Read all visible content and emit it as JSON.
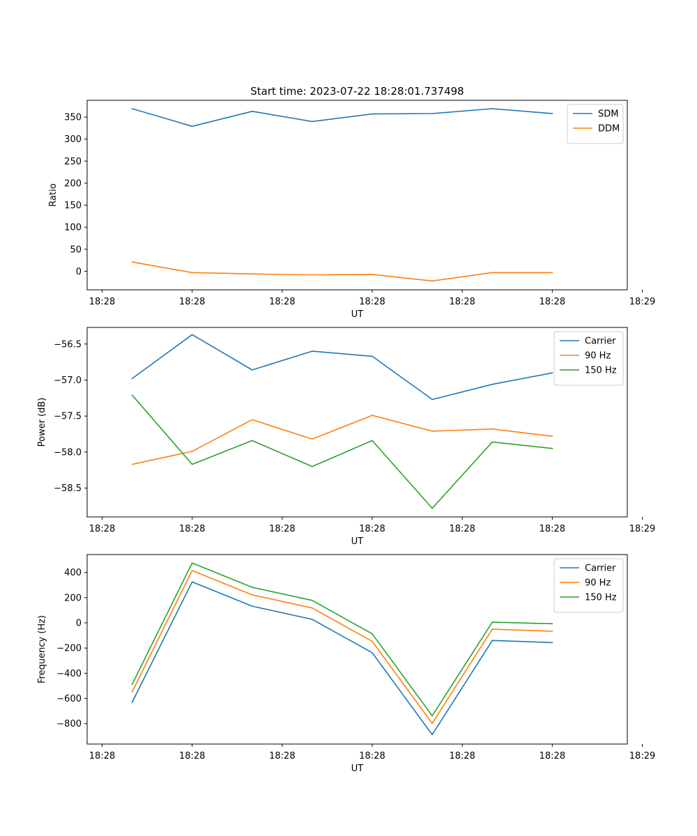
{
  "figure": {
    "title": "Start time: 2023-07-22 18:28:01.737498"
  },
  "colors": {
    "series1": "#1f77b4",
    "series2": "#ff7f0e",
    "series3": "#2ca02c",
    "axis": "#000000",
    "legend_border": "#cccccc"
  },
  "chart_data": [
    {
      "type": "line",
      "title": "Start time: 2023-07-22 18:28:01.737498",
      "xlabel": "UT",
      "ylabel": "Ratio",
      "x": [
        1,
        2,
        3,
        4,
        5,
        6,
        7,
        8
      ],
      "xlim": [
        0.25,
        9.25
      ],
      "xticks": [
        0.5,
        2,
        3.5,
        5,
        6.5,
        8,
        9.5
      ],
      "xtick_labels": [
        "18:28",
        "18:28",
        "18:28",
        "18:28",
        "18:28",
        "18:28",
        "18:29"
      ],
      "ylim": [
        -42,
        388
      ],
      "yticks": [
        0,
        50,
        100,
        150,
        200,
        250,
        300,
        350
      ],
      "ytick_labels": [
        "0",
        "50",
        "100",
        "150",
        "200",
        "250",
        "300",
        "350"
      ],
      "legend_position": "upper right",
      "series": [
        {
          "name": "SDM",
          "color_key": "series1",
          "values": [
            369,
            329,
            363,
            340,
            357,
            358,
            369,
            358
          ]
        },
        {
          "name": "DDM",
          "color_key": "series2",
          "values": [
            21,
            -3,
            -6,
            -8,
            -7,
            -22,
            -3,
            -3
          ]
        }
      ]
    },
    {
      "type": "line",
      "title": "",
      "xlabel": "UT",
      "ylabel": "Power (dB)",
      "x": [
        1,
        2,
        3,
        4,
        5,
        6,
        7,
        8
      ],
      "xlim": [
        0.25,
        9.25
      ],
      "xticks": [
        0.5,
        2,
        3.5,
        5,
        6.5,
        8,
        9.5
      ],
      "xtick_labels": [
        "18:28",
        "18:28",
        "18:28",
        "18:28",
        "18:28",
        "18:28",
        "18:29"
      ],
      "ylim": [
        -58.9,
        -56.27
      ],
      "yticks": [
        -56.5,
        -57.0,
        -57.5,
        -58.0,
        -58.5
      ],
      "ytick_labels": [
        "−56.5",
        "−57.0",
        "−57.5",
        "−58.0",
        "−58.5"
      ],
      "legend_position": "upper right",
      "series": [
        {
          "name": "Carrier",
          "color_key": "series1",
          "values": [
            -56.98,
            -56.37,
            -56.86,
            -56.6,
            -56.67,
            -57.27,
            -57.06,
            -56.9
          ]
        },
        {
          "name": "90 Hz",
          "color_key": "series2",
          "values": [
            -58.17,
            -57.99,
            -57.55,
            -57.82,
            -57.49,
            -57.71,
            -57.68,
            -57.78
          ]
        },
        {
          "name": "150 Hz",
          "color_key": "series3",
          "values": [
            -57.21,
            -58.17,
            -57.84,
            -58.2,
            -57.84,
            -58.78,
            -57.86,
            -57.95
          ]
        }
      ]
    },
    {
      "type": "line",
      "title": "",
      "xlabel": "UT",
      "ylabel": "Frequency (Hz)",
      "x": [
        1,
        2,
        3,
        4,
        5,
        6,
        7,
        8
      ],
      "xlim": [
        0.25,
        9.25
      ],
      "xticks": [
        0.5,
        2,
        3.5,
        5,
        6.5,
        8,
        9.5
      ],
      "xtick_labels": [
        "18:28",
        "18:28",
        "18:28",
        "18:28",
        "18:28",
        "18:28",
        "18:29"
      ],
      "ylim": [
        -962,
        542
      ],
      "yticks": [
        400,
        200,
        0,
        -200,
        -400,
        -600,
        -800
      ],
      "ytick_labels": [
        "400",
        "200",
        "0",
        "−200",
        "−400",
        "−600",
        "−800"
      ],
      "legend_position": "upper right",
      "series": [
        {
          "name": "Carrier",
          "color_key": "series1",
          "values": [
            -630,
            325,
            132,
            28,
            -237,
            -888,
            -140,
            -157
          ]
        },
        {
          "name": "90 Hz",
          "color_key": "series2",
          "values": [
            -548,
            415,
            222,
            118,
            -147,
            -798,
            -50,
            -67
          ]
        },
        {
          "name": "150 Hz",
          "color_key": "series3",
          "values": [
            -488,
            475,
            282,
            178,
            -87,
            -738,
            5,
            -7
          ]
        }
      ]
    }
  ]
}
